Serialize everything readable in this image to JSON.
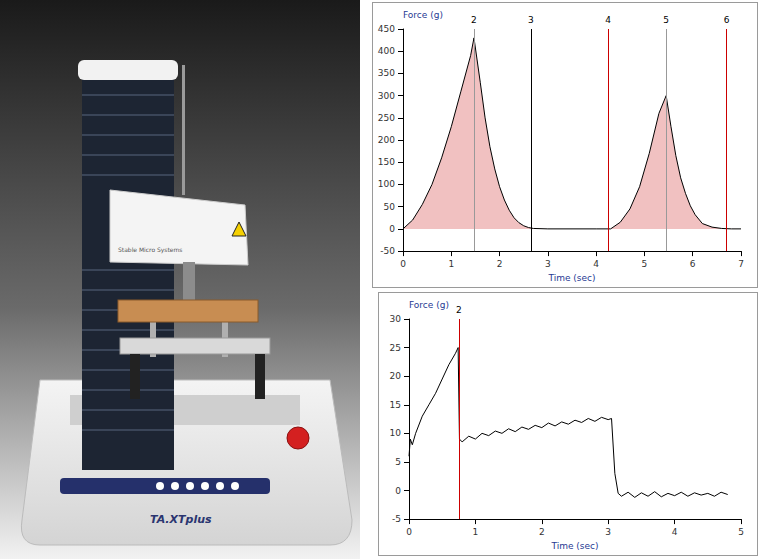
{
  "photo": {
    "labels": [
      "TA.XTplus",
      "Stable Micro Systems"
    ]
  },
  "chart_data": [
    {
      "type": "area",
      "y_label": "Force (g)",
      "x_label": "Time (sec)",
      "color": "#cc2222",
      "x": [
        0,
        0.2,
        0.4,
        0.6,
        0.8,
        1.0,
        1.2,
        1.4,
        1.47,
        1.6,
        1.7,
        1.8,
        1.9,
        2.0,
        2.1,
        2.2,
        2.3,
        2.4,
        2.5,
        2.6,
        2.7,
        3.0,
        3.5,
        4.0,
        4.3,
        4.5,
        4.7,
        4.9,
        5.1,
        5.3,
        5.45,
        5.55,
        5.65,
        5.75,
        5.85,
        5.95,
        6.05,
        6.2,
        6.4,
        6.6,
        6.8,
        7.0
      ],
      "values": [
        0,
        20,
        55,
        100,
        160,
        230,
        310,
        390,
        430,
        330,
        250,
        185,
        135,
        95,
        65,
        42,
        25,
        14,
        7,
        3,
        1,
        0,
        0,
        0,
        0,
        15,
        45,
        95,
        170,
        260,
        300,
        230,
        165,
        115,
        80,
        52,
        32,
        12,
        4,
        1,
        0,
        0
      ],
      "xlim": [
        0,
        7
      ],
      "xticks": [
        0,
        1,
        2,
        3,
        4,
        5,
        6,
        7
      ],
      "ylim": [
        -50,
        450
      ],
      "yticks": [
        -50,
        0,
        50,
        100,
        150,
        200,
        250,
        300,
        350,
        400,
        450
      ],
      "grid": false,
      "markers": [
        {
          "x": 1.47,
          "label": "2",
          "color": "#999999"
        },
        {
          "x": 2.65,
          "label": "3",
          "color": "#000000"
        },
        {
          "x": 4.25,
          "label": "4",
          "color": "#cc0000"
        },
        {
          "x": 5.45,
          "label": "5",
          "color": "#999999"
        },
        {
          "x": 6.7,
          "label": "6",
          "color": "#cc0000"
        }
      ]
    },
    {
      "type": "line",
      "y_label": "Force (g)",
      "x_label": "Time (sec)",
      "color": "#000000",
      "x": [
        0,
        0.02,
        0.05,
        0.1,
        0.2,
        0.3,
        0.4,
        0.5,
        0.6,
        0.7,
        0.74,
        0.76,
        0.8,
        0.9,
        1.0,
        1.1,
        1.2,
        1.3,
        1.4,
        1.5,
        1.6,
        1.7,
        1.8,
        1.9,
        2.0,
        2.1,
        2.2,
        2.3,
        2.4,
        2.5,
        2.6,
        2.7,
        2.8,
        2.9,
        3.0,
        3.05,
        3.1,
        3.15,
        3.2,
        3.3,
        3.4,
        3.5,
        3.6,
        3.7,
        3.8,
        3.9,
        4.0,
        4.1,
        4.2,
        4.3,
        4.4,
        4.5,
        4.6,
        4.7,
        4.8
      ],
      "values": [
        6,
        9,
        8,
        10,
        13,
        15,
        17,
        19.5,
        22,
        24,
        25,
        9,
        8.5,
        9.5,
        9,
        10,
        9.6,
        10.4,
        10,
        10.8,
        10.3,
        11.1,
        10.7,
        11.4,
        11,
        11.8,
        11.3,
        12,
        11.6,
        12.3,
        11.9,
        12.6,
        12.1,
        12.8,
        12.4,
        12.6,
        3,
        -0.5,
        -1,
        -0.3,
        -1.2,
        -0.4,
        -1,
        -0.2,
        -1.1,
        -0.5,
        -0.9,
        -0.3,
        -1,
        -0.4,
        -0.8,
        -0.5,
        -1,
        -0.3,
        -0.7
      ],
      "xlim": [
        0,
        5
      ],
      "xticks": [
        0,
        1,
        2,
        3,
        4,
        5
      ],
      "ylim": [
        -5,
        30
      ],
      "yticks": [
        -5,
        0,
        5,
        10,
        15,
        20,
        25,
        30
      ],
      "grid": false,
      "markers": [
        {
          "x": 0.75,
          "label": "2",
          "color": "#cc0000"
        }
      ]
    }
  ]
}
